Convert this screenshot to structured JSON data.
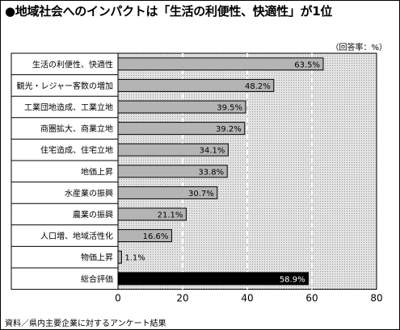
{
  "title": "●地域社会へのインパクトは「生活の利便性、快適性」が1位",
  "unit_note": "（回答率：%）",
  "source_note": "資料／県内主要企業に対するアンケート結果",
  "chart_data": {
    "type": "bar",
    "orientation": "horizontal",
    "title": "地域社会へのインパクトは「生活の利便性、快適性」が1位",
    "categories": [
      "生活の利便性、快適性",
      "観光・レジャー客数の増加",
      "工業団地造成、工業立地",
      "商圏拡大、商業立地",
      "住宅造成、住宅立地",
      "地価上昇",
      "水産業の振興",
      "農業の振興",
      "人口増、地域活性化",
      "物価上昇",
      "総合評価"
    ],
    "values": [
      63.5,
      48.2,
      39.5,
      39.2,
      34.1,
      33.8,
      30.7,
      21.1,
      16.6,
      1.1,
      58.9
    ],
    "value_labels": [
      "63.5%",
      "48.2%",
      "39.5%",
      "39.2%",
      "34.1%",
      "33.8%",
      "30.7%",
      "21.1%",
      "16.6%",
      "1.1%",
      "58.9%"
    ],
    "highlight_index": 10,
    "xlim": [
      0,
      80
    ],
    "xticks": [
      0,
      20,
      40,
      60,
      80
    ],
    "xtick_labels": [
      "0",
      "20",
      "40",
      "60",
      "80"
    ],
    "grid": true,
    "colors": {
      "bar": "#b4b4b4",
      "bar_highlight": "#000000",
      "plot_background": "#d9d9d9",
      "category_background": "#ffffff"
    }
  }
}
